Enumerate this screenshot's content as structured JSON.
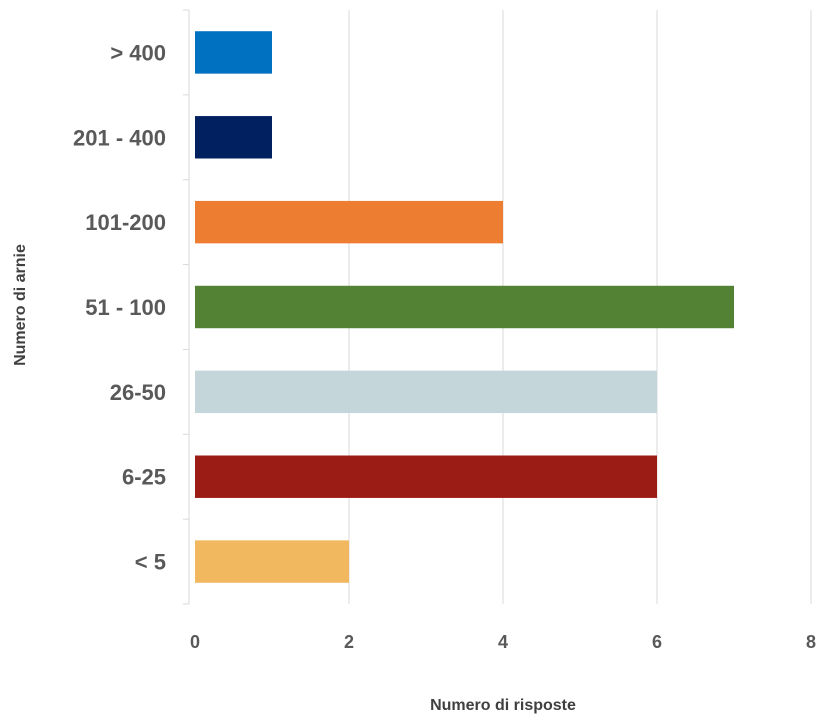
{
  "chart_data": {
    "type": "bar",
    "orientation": "horizontal",
    "categories": [
      "< 5",
      "6-25",
      "26-50",
      "51 - 100",
      "101-200",
      "201 - 400",
      "> 400"
    ],
    "values": [
      2,
      6,
      6,
      7,
      4,
      1,
      1
    ],
    "bar_colors": [
      "#F1B85F",
      "#9B1B15",
      "#C4D6DA",
      "#548235",
      "#ED7D31",
      "#002060",
      "#0070C0"
    ],
    "xlabel": "Numero di risposte",
    "ylabel": "Numero di arnie",
    "xlim": [
      0,
      8
    ],
    "xticks": [
      "0",
      "2",
      "4",
      "6",
      "8"
    ],
    "grid": "vertical",
    "legend": "none"
  }
}
